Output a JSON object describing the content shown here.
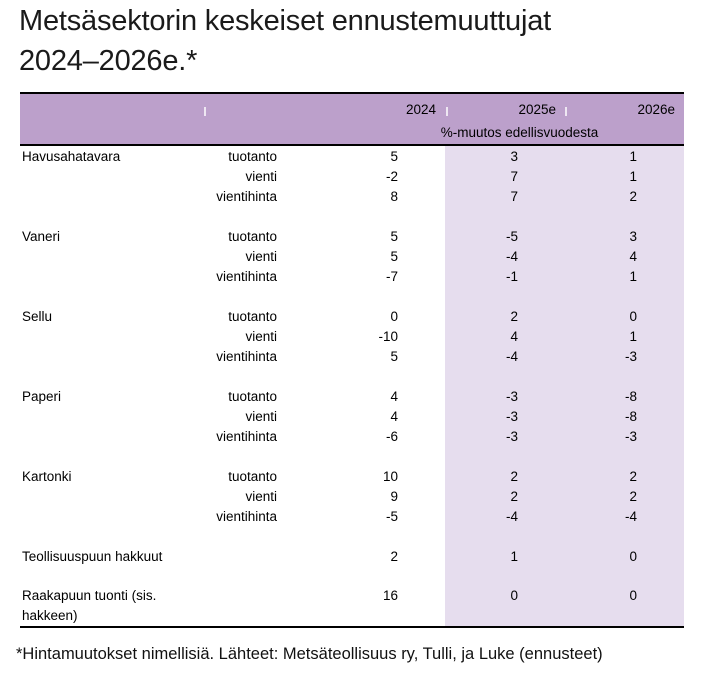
{
  "page": {
    "title_line1": "Metsäsektorin keskeiset ennustemuuttujat",
    "title_line2": "2024–2026e.*",
    "footnote": "*Hintamuutokset nimellisiä. Lähteet: Metsäteollisuus ry, Tulli, ja Luke (ennusteet)"
  },
  "colors": {
    "header_bg": "#bca0cb",
    "forecast_shade_bg": "#e6ddee",
    "border": "#000000",
    "text": "#000000"
  },
  "chart_data": {
    "type": "table",
    "title": "Metsäsektorin keskeiset ennustemuuttujat 2024–2026e.*",
    "unit_note": "%-muutos edellisvuodesta",
    "columns": [
      "2024",
      "2025e",
      "2026e"
    ],
    "shaded_columns": [
      "2025e",
      "2026e"
    ],
    "groups": [
      {
        "name": "Havusahatavara",
        "rows": [
          {
            "measure": "tuotanto",
            "values": [
              5,
              3,
              1
            ]
          },
          {
            "measure": "vienti",
            "values": [
              -2,
              7,
              1
            ]
          },
          {
            "measure": "vientihinta",
            "values": [
              8,
              7,
              2
            ]
          }
        ]
      },
      {
        "name": "Vaneri",
        "rows": [
          {
            "measure": "tuotanto",
            "values": [
              5,
              -5,
              3
            ]
          },
          {
            "measure": "vienti",
            "values": [
              5,
              -4,
              4
            ]
          },
          {
            "measure": "vientihinta",
            "values": [
              -7,
              -1,
              1
            ]
          }
        ]
      },
      {
        "name": "Sellu",
        "rows": [
          {
            "measure": "tuotanto",
            "values": [
              0,
              2,
              0
            ]
          },
          {
            "measure": "vienti",
            "values": [
              -10,
              4,
              1
            ]
          },
          {
            "measure": "vientihinta",
            "values": [
              5,
              -4,
              -3
            ]
          }
        ]
      },
      {
        "name": "Paperi",
        "rows": [
          {
            "measure": "tuotanto",
            "values": [
              4,
              -3,
              -8
            ]
          },
          {
            "measure": "vienti",
            "values": [
              4,
              -3,
              -8
            ]
          },
          {
            "measure": "vientihinta",
            "values": [
              -6,
              -3,
              -3
            ]
          }
        ]
      },
      {
        "name": "Kartonki",
        "rows": [
          {
            "measure": "tuotanto",
            "values": [
              10,
              2,
              2
            ]
          },
          {
            "measure": "vienti",
            "values": [
              9,
              2,
              2
            ]
          },
          {
            "measure": "vientihinta",
            "values": [
              -5,
              -4,
              -4
            ]
          }
        ]
      },
      {
        "name": "Teollisuuspuun hakkuut",
        "rows": [
          {
            "measure": "",
            "values": [
              2,
              1,
              0
            ]
          }
        ]
      },
      {
        "name": "Raakapuun tuonti (sis. hakkeen)",
        "rows": [
          {
            "measure": "",
            "values": [
              16,
              0,
              0
            ]
          }
        ]
      }
    ]
  }
}
